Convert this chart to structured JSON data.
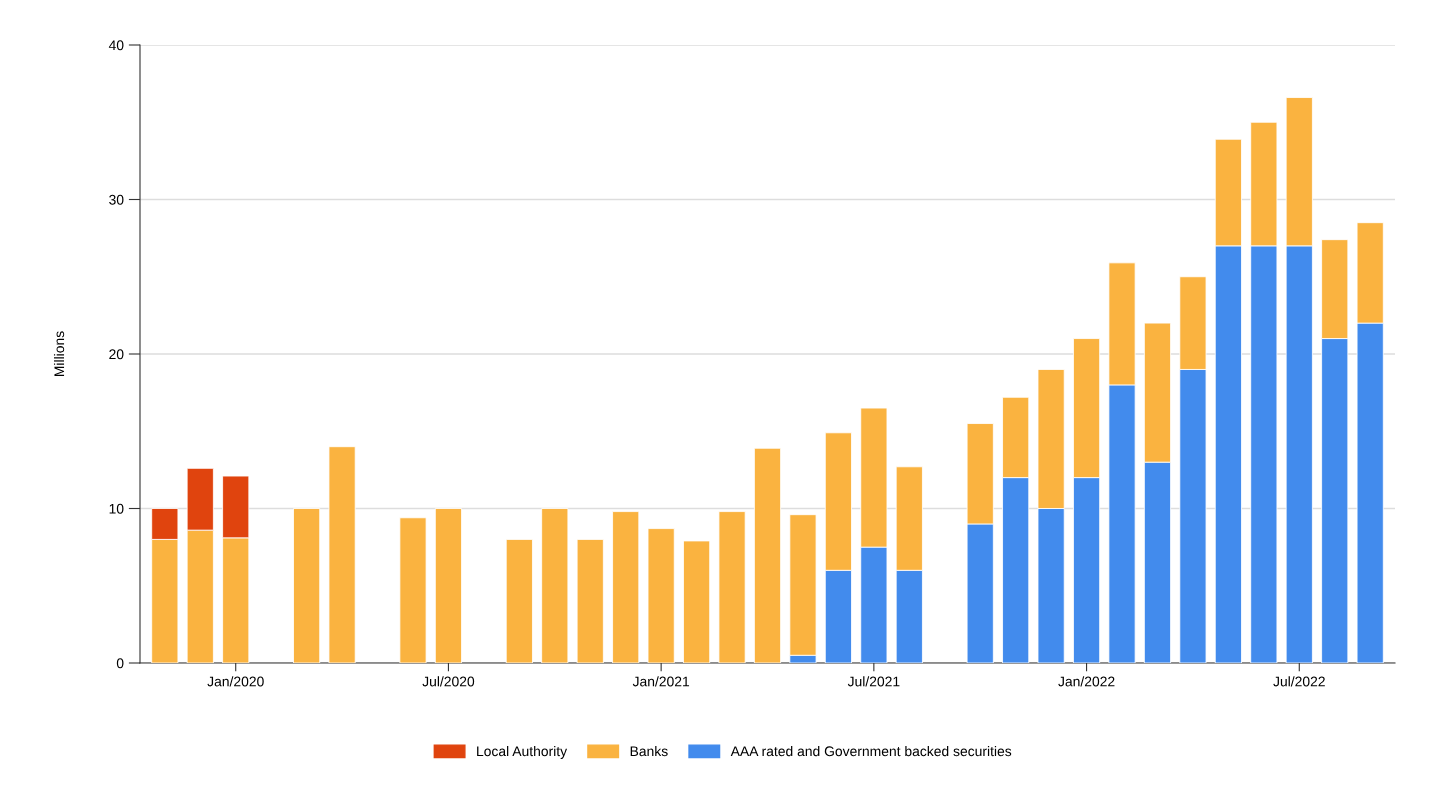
{
  "chart_data": {
    "type": "bar",
    "stacked": true,
    "ylabel": "Millions",
    "categories": [
      null,
      null,
      "Jan/2020",
      null,
      null,
      null,
      null,
      null,
      "Jul/2020",
      null,
      null,
      null,
      null,
      null,
      "Jan/2021",
      null,
      null,
      null,
      null,
      null,
      "Jul/2021",
      null,
      null,
      null,
      null,
      null,
      "Jan/2022",
      null,
      null,
      null,
      null,
      null,
      "Jul/2022",
      null,
      null
    ],
    "series": [
      {
        "name": "AAA rated and Government backed securities",
        "color": "#428bed",
        "values": [
          null,
          null,
          null,
          null,
          null,
          null,
          null,
          null,
          null,
          null,
          null,
          null,
          null,
          null,
          null,
          null,
          null,
          null,
          0.5,
          6.0,
          7.5,
          6.0,
          null,
          9.0,
          12.0,
          10.0,
          12.0,
          18.0,
          13.0,
          19.0,
          27.0,
          27.0,
          27.0,
          21.0,
          22.0
        ]
      },
      {
        "name": "Banks",
        "color": "#fab340",
        "values": [
          8.0,
          8.6,
          8.1,
          null,
          10.0,
          14.0,
          null,
          9.4,
          10.0,
          null,
          8.0,
          10.0,
          8.0,
          9.8,
          8.7,
          7.9,
          9.8,
          13.9,
          9.1,
          8.9,
          9.0,
          6.7,
          null,
          6.5,
          5.2,
          9.0,
          9.0,
          7.9,
          9.0,
          6.0,
          6.9,
          8.0,
          9.6,
          6.4,
          6.5
        ]
      },
      {
        "name": "Local Authority",
        "color": "#e0440e",
        "values": [
          2.0,
          4.0,
          4.0,
          null,
          null,
          null,
          null,
          null,
          null,
          null,
          null,
          null,
          null,
          null,
          null,
          null,
          null,
          null,
          null,
          null,
          null,
          null,
          null,
          null,
          null,
          null,
          null,
          null,
          null,
          null,
          null,
          null,
          null,
          null,
          null
        ]
      }
    ],
    "ylim": [
      0,
      40
    ],
    "yticks": [
      0,
      10,
      20,
      30,
      40
    ],
    "grid": "y",
    "legend": "bottom"
  }
}
